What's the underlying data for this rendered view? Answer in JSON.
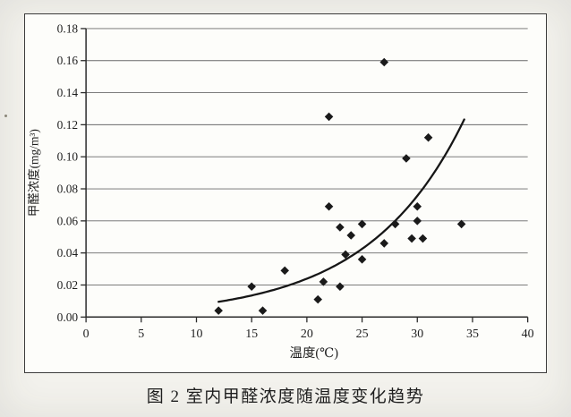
{
  "figure": {
    "caption": "图 2  室内甲醛浓度随温度变化趋势"
  },
  "chart_data": {
    "type": "scatter",
    "title": "",
    "xlabel": "温度(℃)",
    "ylabel": "甲醛浓度(mg/m³)",
    "xlim": [
      0,
      40
    ],
    "ylim": [
      0,
      0.18
    ],
    "x_ticks": [
      0,
      5,
      10,
      15,
      20,
      25,
      30,
      35,
      40
    ],
    "y_ticks": [
      0,
      0.02,
      0.04,
      0.06,
      0.08,
      0.1,
      0.12,
      0.14,
      0.16,
      0.18
    ],
    "grid": "horizontal",
    "legend": "none",
    "marker": "diamond",
    "marker_color": "#1a1a1a",
    "axis_color": "#2a2a2a",
    "grid_color": "#6a6a6a",
    "curve_color": "#161616",
    "points": [
      [
        12,
        0.004
      ],
      [
        15,
        0.019
      ],
      [
        16,
        0.004
      ],
      [
        18,
        0.029
      ],
      [
        21,
        0.011
      ],
      [
        21.5,
        0.022
      ],
      [
        22,
        0.069
      ],
      [
        22,
        0.125
      ],
      [
        23,
        0.019
      ],
      [
        23,
        0.056
      ],
      [
        23.5,
        0.039
      ],
      [
        24,
        0.051
      ],
      [
        25,
        0.036
      ],
      [
        25,
        0.058
      ],
      [
        27,
        0.046
      ],
      [
        27,
        0.159
      ],
      [
        28,
        0.058
      ],
      [
        29,
        0.099
      ],
      [
        29.5,
        0.049
      ],
      [
        30,
        0.06
      ],
      [
        30,
        0.069
      ],
      [
        30.5,
        0.049
      ],
      [
        31,
        0.112
      ],
      [
        34,
        0.058
      ]
    ],
    "trend_curve": {
      "type": "exponential",
      "a": 0.0024,
      "b": 0.115,
      "x_start": 12,
      "x_end": 34.3
    }
  }
}
